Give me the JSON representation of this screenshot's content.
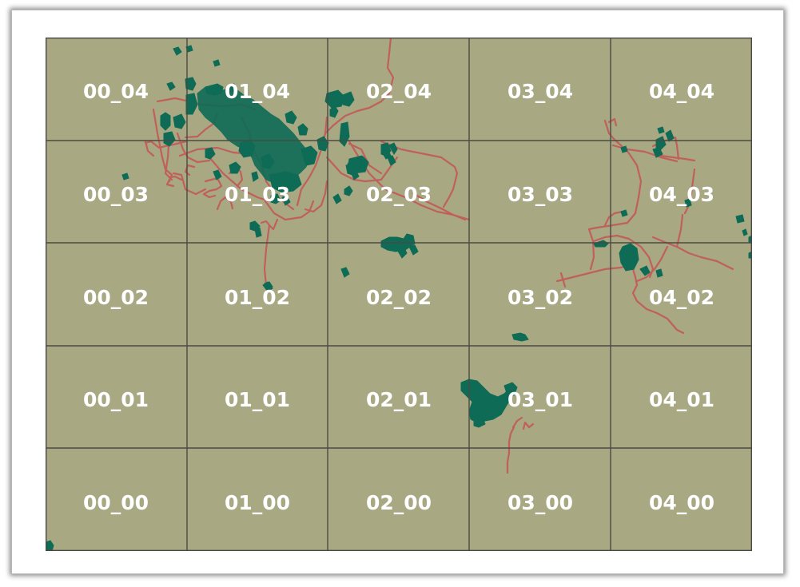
{
  "map": {
    "colors": {
      "background": "#a8a882",
      "grid": "#4a4a44",
      "roads": "#c0605c",
      "built_up": "#0e6b55"
    },
    "tiles": [
      [
        "00_04",
        "01_04",
        "02_04",
        "03_04",
        "04_04"
      ],
      [
        "00_03",
        "01_03",
        "02_03",
        "03_03",
        "04_03"
      ],
      [
        "00_02",
        "01_02",
        "02_02",
        "03_02",
        "04_02"
      ],
      [
        "00_01",
        "01_01",
        "02_01",
        "03_01",
        "04_01"
      ],
      [
        "00_00",
        "01_00",
        "02_00",
        "03_00",
        "04_00"
      ]
    ]
  }
}
